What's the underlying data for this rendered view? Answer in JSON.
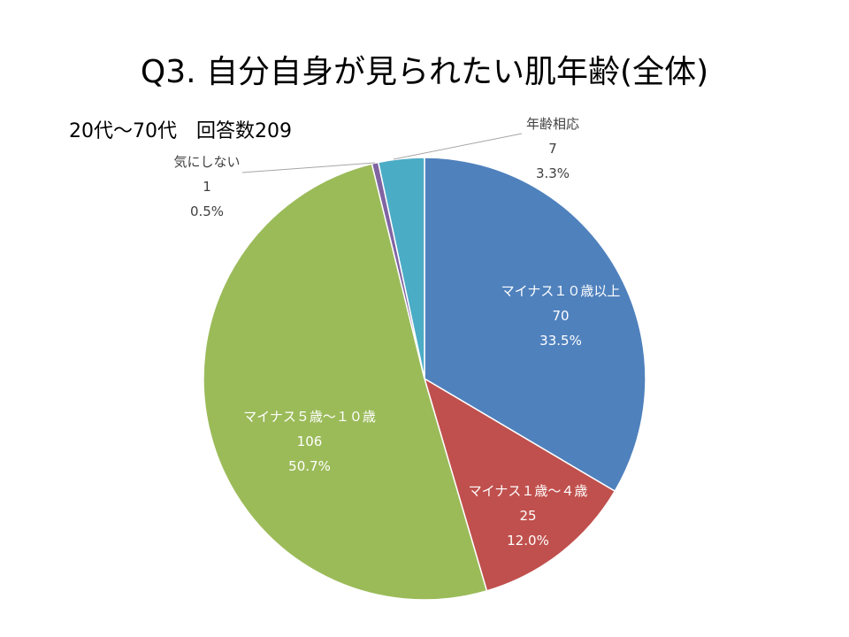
{
  "title": "Q3. 自分自身が見られたい肌年齢(全体)",
  "subtitle": "20代～70代　回答数209",
  "chart_data": {
    "type": "pie",
    "title": "Q3. 自分自身が見られたい肌年齢(全体)",
    "subtitle": "20代～70代　回答数209",
    "slices": [
      {
        "label": "マイナス１０歳以上",
        "value": 70,
        "percent": "33.5%",
        "color": "#4F81BD",
        "label_position": "inside"
      },
      {
        "label": "マイナス１歳～４歳",
        "value": 25,
        "percent": "12.0%",
        "color": "#C0504D",
        "label_position": "inside"
      },
      {
        "label": "マイナス５歳～１０歳",
        "value": 106,
        "percent": "50.7%",
        "color": "#9BBB59",
        "label_position": "inside"
      },
      {
        "label": "気にしない",
        "value": 1,
        "percent": "0.5%",
        "color": "#8064A2",
        "label_position": "outside-left"
      },
      {
        "label": "年齢相応",
        "value": 7,
        "percent": "3.3%",
        "color": "#4BACC6",
        "label_position": "outside-top"
      }
    ],
    "start_angle": "12 o'clock",
    "direction": "clockwise",
    "legend": "none"
  }
}
